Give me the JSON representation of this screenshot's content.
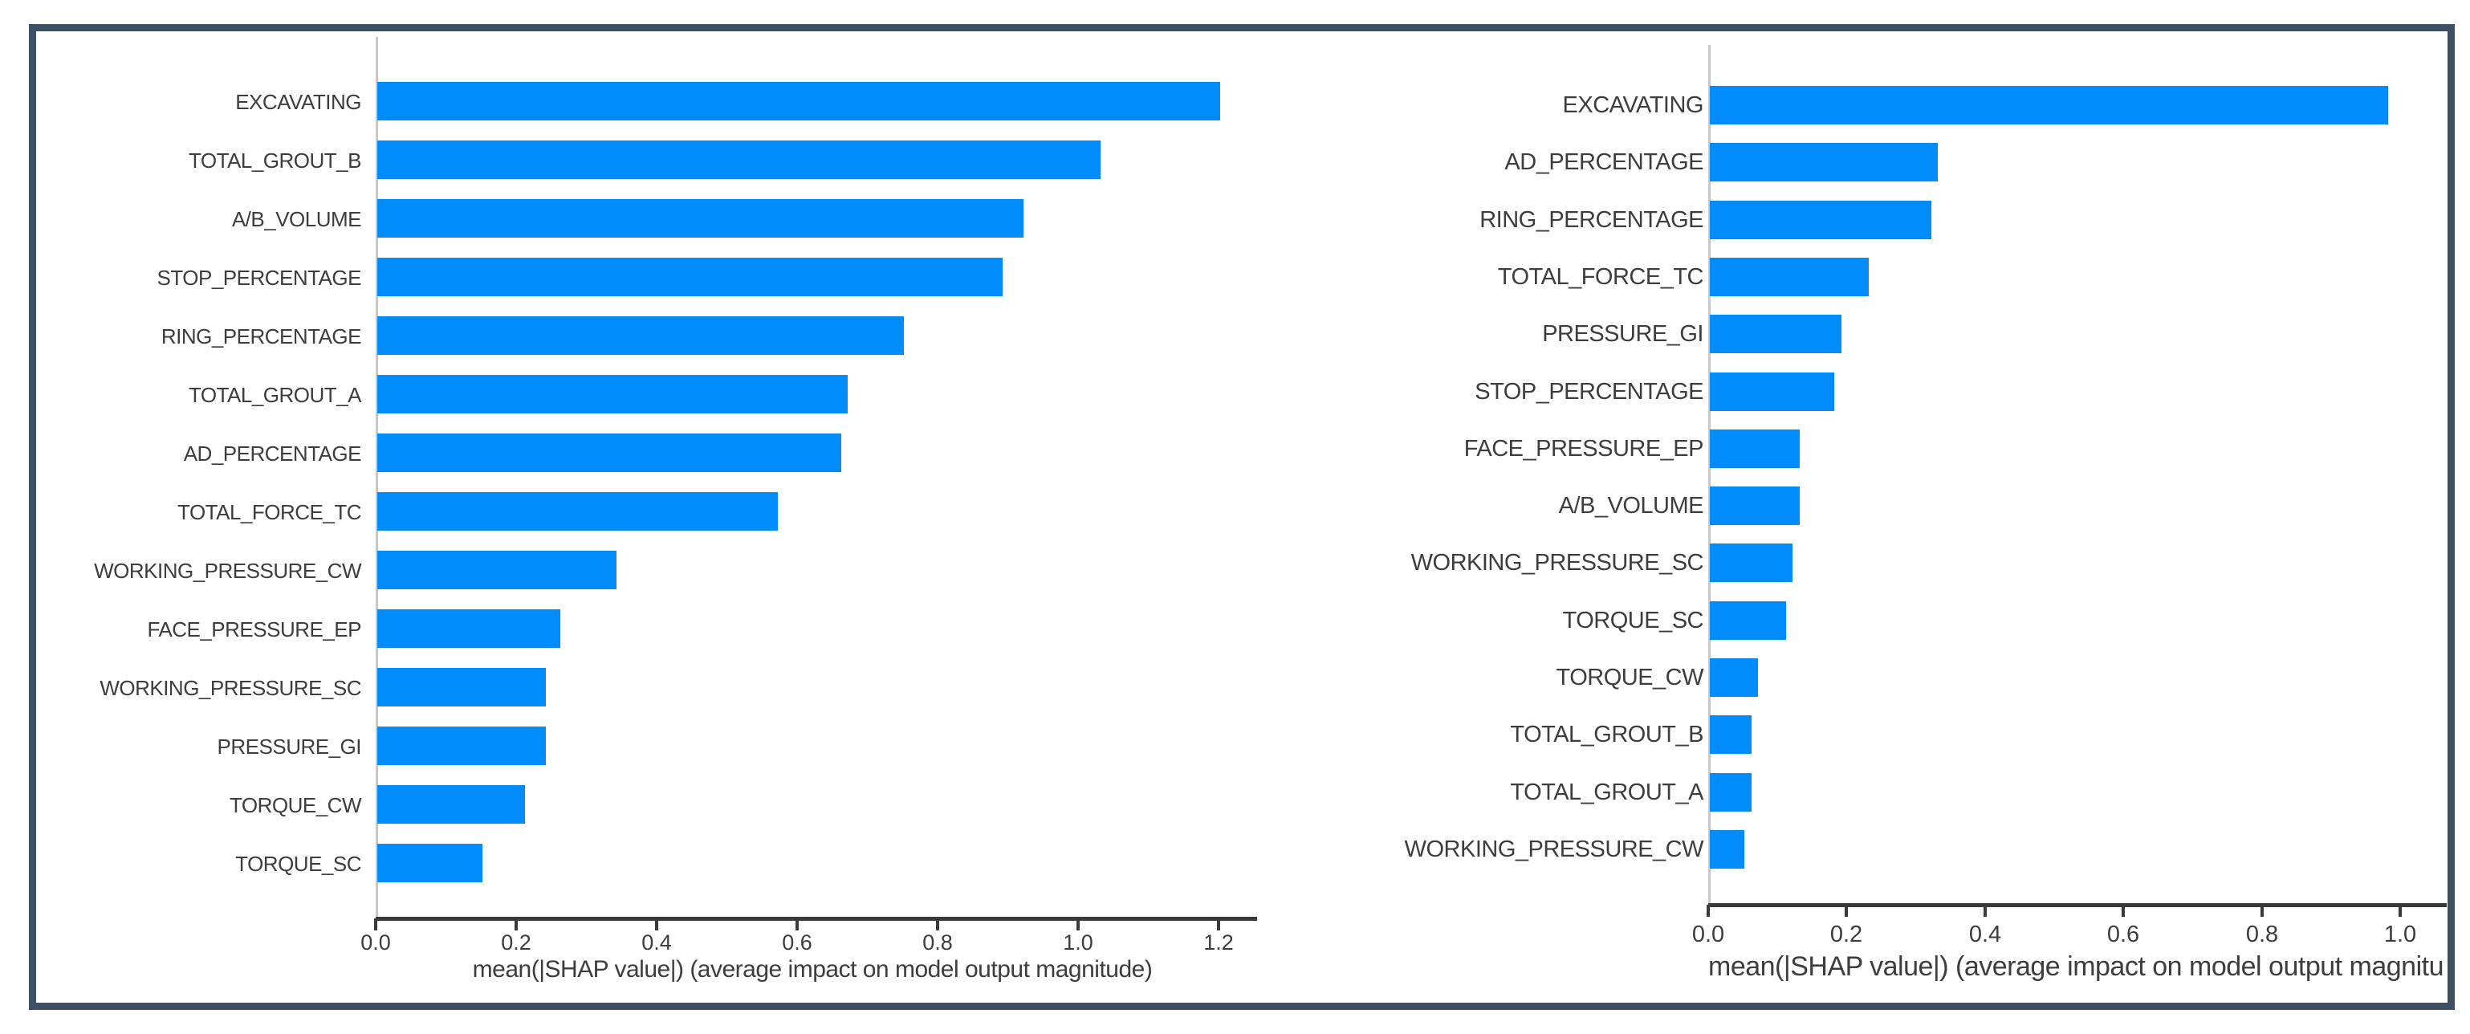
{
  "figure": {
    "border_color": "#3d5064",
    "background_color": "#ffffff",
    "bar_color": "#008cfa",
    "axis_color": "#3a3a3a",
    "text_color": "#3d3d3d"
  },
  "chart_data": [
    {
      "type": "bar",
      "orientation": "horizontal",
      "title": "",
      "xlabel": "mean(|SHAP value|) (average impact on model output magnitude)",
      "ylabel": "",
      "categories": [
        "EXCAVATING",
        "TOTAL_GROUT_B",
        "A/B_VOLUME",
        "STOP_PERCENTAGE",
        "RING_PERCENTAGE",
        "TOTAL_GROUT_A",
        "AD_PERCENTAGE",
        "TOTAL_FORCE_TC",
        "WORKING_PRESSURE_CW",
        "FACE_PRESSURE_EP",
        "WORKING_PRESSURE_SC",
        "PRESSURE_GI",
        "TORQUE_CW",
        "TORQUE_SC"
      ],
      "values": [
        1.2,
        1.03,
        0.92,
        0.89,
        0.75,
        0.67,
        0.66,
        0.57,
        0.34,
        0.26,
        0.24,
        0.24,
        0.21,
        0.15
      ],
      "tick_labels": [
        "0.0",
        "0.2",
        "0.4",
        "0.6",
        "0.8",
        "1.0",
        "1.2"
      ],
      "tick_values": [
        0,
        0.2,
        0.4,
        0.6,
        0.8,
        1.0,
        1.2
      ],
      "xlim": [
        0,
        1.255
      ],
      "grid": false,
      "legend": null,
      "bar_color": "#008cfa"
    },
    {
      "type": "bar",
      "orientation": "horizontal",
      "title": "",
      "xlabel": "mean(|SHAP value|) (average impact on model output magnitu",
      "ylabel": "",
      "categories": [
        "EXCAVATING",
        "AD_PERCENTAGE",
        "RING_PERCENTAGE",
        "TOTAL_FORCE_TC",
        "PRESSURE_GI",
        "STOP_PERCENTAGE",
        "FACE_PRESSURE_EP",
        "A/B_VOLUME",
        "WORKING_PRESSURE_SC",
        "TORQUE_SC",
        "TORQUE_CW",
        "TOTAL_GROUT_B",
        "TOTAL_GROUT_A",
        "WORKING_PRESSURE_CW"
      ],
      "values": [
        0.98,
        0.33,
        0.32,
        0.23,
        0.19,
        0.18,
        0.13,
        0.13,
        0.12,
        0.11,
        0.07,
        0.06,
        0.06,
        0.05
      ],
      "tick_labels": [
        "0.0",
        "0.2",
        "0.4",
        "0.6",
        "0.8",
        "1.0"
      ],
      "tick_values": [
        0,
        0.2,
        0.4,
        0.6,
        0.8,
        1.0
      ],
      "xlim": [
        0,
        1.065
      ],
      "grid": false,
      "legend": null,
      "bar_color": "#008cfa"
    }
  ]
}
